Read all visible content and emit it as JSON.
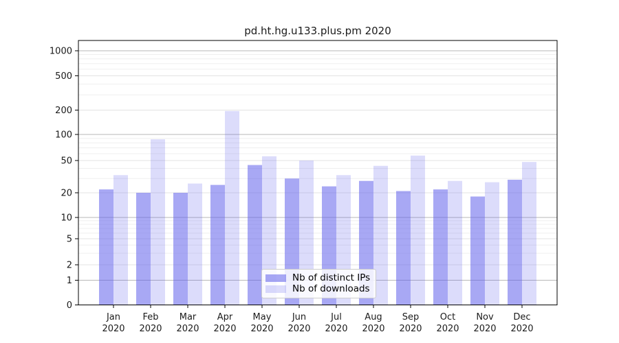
{
  "chart_data": {
    "type": "bar",
    "title": "pd.ht.hg.u133.plus.pm 2020",
    "categories": [
      "Jan 2020",
      "Feb 2020",
      "Mar 2020",
      "Apr 2020",
      "May 2020",
      "Jun 2020",
      "Jul 2020",
      "Aug 2020",
      "Sep 2020",
      "Oct 2020",
      "Nov 2020",
      "Dec 2020"
    ],
    "series": [
      {
        "name": "Nb of distinct IPs",
        "color": "rgba(95,95,235,0.54)",
        "values": [
          22,
          20,
          20,
          25,
          44,
          30,
          24,
          28,
          21,
          22,
          18,
          29
        ]
      },
      {
        "name": "Nb of downloads",
        "color": "rgba(95,95,235,0.22)",
        "values": [
          33,
          88,
          26,
          195,
          56,
          50,
          33,
          43,
          57,
          28,
          27,
          48
        ]
      }
    ],
    "y_ticks": [
      0,
      1,
      2,
      5,
      10,
      20,
      50,
      100,
      200,
      500,
      1000
    ],
    "yscale": "symlog",
    "ylim": [
      0,
      1300
    ],
    "xlabel": "",
    "ylabel": "",
    "grid": true,
    "legend_position": "lower center",
    "colors": {
      "bar_dark": "rgba(95,95,235,0.54)",
      "bar_light": "rgba(95,95,235,0.22)",
      "grid_major": "#b7b7b7",
      "grid_sub": "#e3e3e3",
      "grid_minor": "#efefef",
      "spine": "#000000"
    }
  }
}
